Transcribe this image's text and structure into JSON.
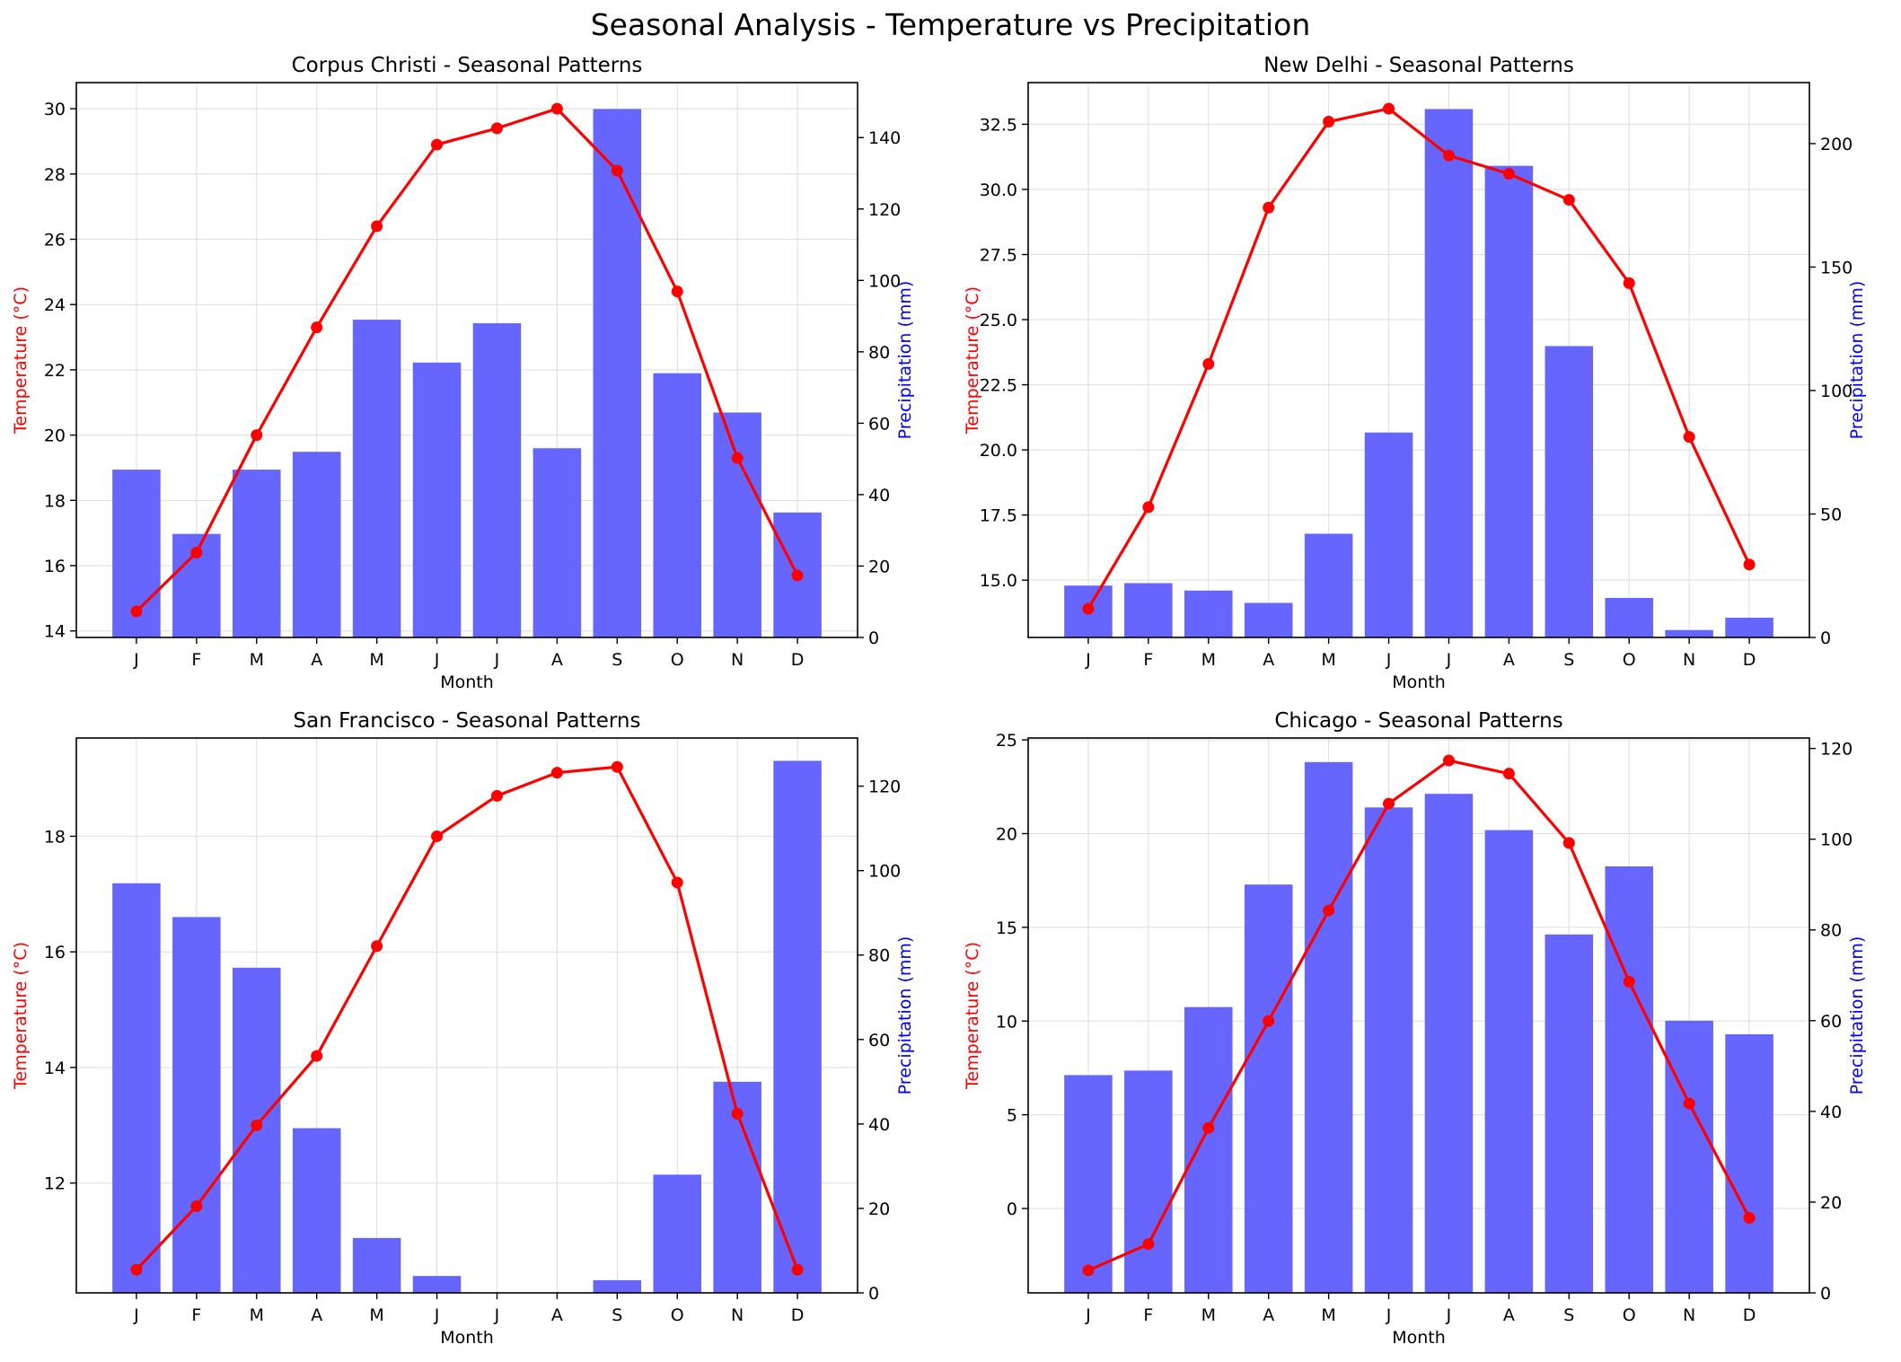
{
  "figure_title": "Seasonal Analysis - Temperature vs Precipitation",
  "colors": {
    "temperature": "#ff0000",
    "precipitation": "#6666ff",
    "precip_label": "#0000ff",
    "grid": "#dddddd"
  },
  "chart_data": [
    {
      "type": "bar+line",
      "title": "Corpus Christi - Seasonal Patterns",
      "xlabel": "Month",
      "ylabel_left": "Temperature (°C)",
      "ylabel_right": "Precipitation (mm)",
      "categories": [
        "J",
        "F",
        "M",
        "A",
        "M",
        "J",
        "J",
        "A",
        "S",
        "O",
        "N",
        "D"
      ],
      "temperature": [
        14.6,
        16.4,
        20.0,
        23.3,
        26.4,
        28.9,
        29.4,
        30.0,
        28.1,
        24.4,
        19.3,
        15.7
      ],
      "precipitation": [
        47,
        29,
        47,
        52,
        89,
        77,
        88,
        53,
        148,
        74,
        63,
        35
      ],
      "ylim_left": [
        13.8,
        30.8
      ],
      "ylim_right": [
        0,
        155.4
      ],
      "yticks_left": [
        "14",
        "16",
        "18",
        "20",
        "22",
        "24",
        "26",
        "28",
        "30"
      ],
      "yticks_right": [
        "0",
        "20",
        "40",
        "60",
        "80",
        "100",
        "120",
        "140"
      ],
      "grid": true
    },
    {
      "type": "bar+line",
      "title": "New Delhi - Seasonal Patterns",
      "xlabel": "Month",
      "ylabel_left": "Temperature (°C)",
      "ylabel_right": "Precipitation (mm)",
      "categories": [
        "J",
        "F",
        "M",
        "A",
        "M",
        "J",
        "J",
        "A",
        "S",
        "O",
        "N",
        "D"
      ],
      "temperature": [
        13.9,
        17.8,
        23.3,
        29.3,
        32.6,
        33.1,
        31.3,
        30.6,
        29.6,
        26.4,
        20.5,
        15.6
      ],
      "precipitation": [
        21,
        22,
        19,
        14,
        42,
        83,
        214,
        191,
        118,
        16,
        3,
        8
      ],
      "ylim_left": [
        12.8,
        34.1
      ],
      "ylim_right": [
        0,
        224.7
      ],
      "yticks_left": [
        "15.0",
        "17.5",
        "20.0",
        "22.5",
        "25.0",
        "27.5",
        "30.0",
        "32.5"
      ],
      "yticks_right": [
        "0",
        "50",
        "100",
        "150",
        "200"
      ],
      "grid": true
    },
    {
      "type": "bar+line",
      "title": "San Francisco - Seasonal Patterns",
      "xlabel": "Month",
      "ylabel_left": "Temperature (°C)",
      "ylabel_right": "Precipitation (mm)",
      "categories": [
        "J",
        "F",
        "M",
        "A",
        "M",
        "J",
        "J",
        "A",
        "S",
        "O",
        "N",
        "D"
      ],
      "temperature": [
        10.5,
        11.6,
        13.0,
        14.2,
        16.1,
        18.0,
        18.7,
        19.1,
        19.2,
        17.2,
        13.2,
        10.5
      ],
      "precipitation": [
        97,
        89,
        77,
        39,
        13,
        4,
        0,
        0,
        3,
        28,
        50,
        126
      ],
      "ylim_left": [
        10.1,
        19.7
      ],
      "ylim_right": [
        0,
        131.4
      ],
      "yticks_left": [
        "12",
        "14",
        "16",
        "18"
      ],
      "yticks_right": [
        "0",
        "20",
        "40",
        "60",
        "80",
        "100",
        "120"
      ],
      "grid": true
    },
    {
      "type": "bar+line",
      "title": "Chicago - Seasonal Patterns",
      "xlabel": "Month",
      "ylabel_left": "Temperature (°C)",
      "ylabel_right": "Precipitation (mm)",
      "categories": [
        "J",
        "F",
        "M",
        "A",
        "M",
        "J",
        "J",
        "A",
        "S",
        "O",
        "N",
        "D"
      ],
      "temperature": [
        -3.3,
        -1.9,
        4.3,
        10.0,
        15.9,
        21.6,
        23.9,
        23.2,
        19.5,
        12.1,
        5.6,
        -0.5
      ],
      "precipitation": [
        48,
        49,
        63,
        90,
        117,
        107,
        110,
        102,
        79,
        94,
        60,
        57
      ],
      "ylim_left": [
        -4.5,
        25.1
      ],
      "ylim_right": [
        0,
        122.3
      ],
      "yticks_left": [
        "0",
        "5",
        "10",
        "15",
        "20",
        "25"
      ],
      "yticks_right": [
        "0",
        "20",
        "40",
        "60",
        "80",
        "100",
        "120"
      ],
      "grid": true
    }
  ]
}
